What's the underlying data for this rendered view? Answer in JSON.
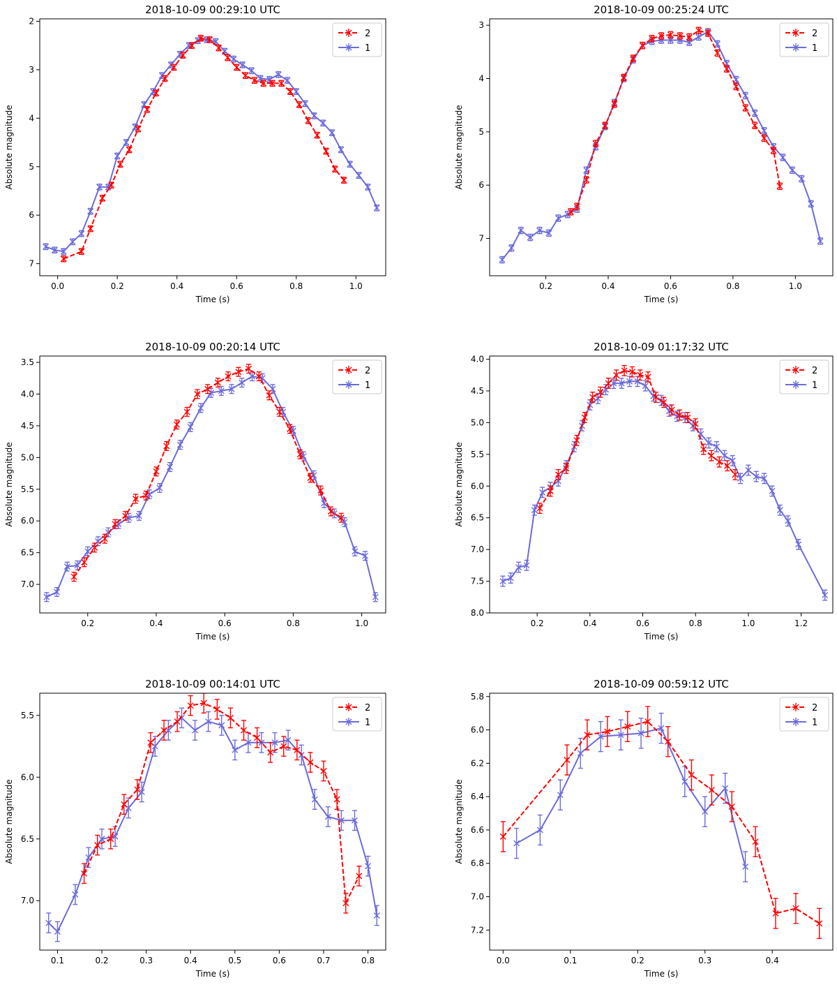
{
  "figure": {
    "ylabel_common": "Absolute magnitude",
    "xlabel_common": "Time (s)"
  },
  "colors": {
    "series_2": "#ff0000",
    "series_1": "#6b6bdb",
    "axis": "#000000"
  },
  "chart_data": [
    {
      "type": "line",
      "title": "2018-10-09 00:29:10 UTC",
      "xlabel": "Time (s)",
      "ylabel": "Absolute magnitude",
      "xlim": [
        -0.06,
        1.1
      ],
      "ylim": [
        7.25,
        1.95
      ],
      "y_inverted": true,
      "xticks": [
        0.0,
        0.2,
        0.4,
        0.6,
        0.8,
        1.0
      ],
      "xtick_labels": [
        "0.0",
        "0.2",
        "0.4",
        "0.6",
        "0.8",
        "1.0"
      ],
      "yticks": [
        2,
        3,
        4,
        5,
        6,
        7
      ],
      "ytick_labels": [
        "2",
        "3",
        "4",
        "5",
        "6",
        "7"
      ],
      "legend": [
        "2",
        "1"
      ],
      "legend_position": "top-right",
      "series": [
        {
          "name": "2",
          "style": "dashed",
          "err": 0.06,
          "x": [
            0.02,
            0.08,
            0.11,
            0.15,
            0.18,
            0.21,
            0.24,
            0.27,
            0.3,
            0.33,
            0.36,
            0.39,
            0.42,
            0.45,
            0.48,
            0.51,
            0.54,
            0.57,
            0.6,
            0.63,
            0.66,
            0.69,
            0.72,
            0.75,
            0.78,
            0.81,
            0.84,
            0.87,
            0.9,
            0.93,
            0.96
          ],
          "y": [
            6.9,
            6.75,
            6.28,
            5.65,
            5.38,
            4.95,
            4.65,
            4.22,
            3.82,
            3.48,
            3.18,
            2.95,
            2.7,
            2.5,
            2.35,
            2.38,
            2.55,
            2.75,
            2.95,
            3.12,
            3.22,
            3.28,
            3.28,
            3.28,
            3.45,
            3.72,
            4.05,
            4.35,
            4.68,
            5.05,
            5.28
          ]
        },
        {
          "name": "1",
          "style": "solid",
          "err": 0.06,
          "x": [
            -0.04,
            -0.01,
            0.02,
            0.05,
            0.08,
            0.11,
            0.14,
            0.17,
            0.2,
            0.23,
            0.26,
            0.29,
            0.32,
            0.35,
            0.38,
            0.41,
            0.44,
            0.47,
            0.5,
            0.53,
            0.56,
            0.59,
            0.62,
            0.65,
            0.68,
            0.71,
            0.74,
            0.77,
            0.8,
            0.83,
            0.86,
            0.89,
            0.92,
            0.95,
            0.98,
            1.01,
            1.04,
            1.07
          ],
          "y": [
            6.65,
            6.72,
            6.75,
            6.55,
            6.38,
            5.92,
            5.42,
            5.42,
            4.78,
            4.5,
            4.18,
            3.72,
            3.45,
            3.12,
            2.9,
            2.68,
            2.5,
            2.4,
            2.38,
            2.42,
            2.62,
            2.78,
            2.9,
            3.02,
            3.18,
            3.2,
            3.1,
            3.22,
            3.45,
            3.7,
            3.95,
            4.1,
            4.3,
            4.65,
            4.95,
            5.18,
            5.42,
            5.85
          ]
        }
      ]
    },
    {
      "type": "line",
      "title": "2018-10-09 00:25:24 UTC",
      "xlabel": "Time (s)",
      "ylabel": "Absolute magnitude",
      "xlim": [
        0.02,
        1.12
      ],
      "ylim": [
        7.7,
        2.88
      ],
      "y_inverted": true,
      "xticks": [
        0.2,
        0.4,
        0.6,
        0.8,
        1.0
      ],
      "xtick_labels": [
        "0.2",
        "0.4",
        "0.6",
        "0.8",
        "1.0"
      ],
      "yticks": [
        3,
        4,
        5,
        6,
        7
      ],
      "ytick_labels": [
        "3",
        "4",
        "5",
        "6",
        "7"
      ],
      "legend": [
        "2",
        "1"
      ],
      "legend_position": "top-right",
      "series": [
        {
          "name": "2",
          "style": "dashed",
          "err": 0.06,
          "x": [
            0.28,
            0.3,
            0.33,
            0.36,
            0.39,
            0.42,
            0.45,
            0.48,
            0.51,
            0.54,
            0.57,
            0.6,
            0.63,
            0.66,
            0.69,
            0.72,
            0.75,
            0.78,
            0.81,
            0.84,
            0.87,
            0.9,
            0.93,
            0.95
          ],
          "y": [
            6.5,
            6.4,
            5.9,
            5.22,
            4.88,
            4.48,
            3.98,
            3.62,
            3.38,
            3.25,
            3.2,
            3.18,
            3.2,
            3.22,
            3.1,
            3.15,
            3.52,
            3.82,
            4.15,
            4.55,
            4.88,
            5.12,
            5.35,
            6.02
          ]
        },
        {
          "name": "1",
          "style": "solid",
          "err": 0.06,
          "x": [
            0.06,
            0.09,
            0.12,
            0.15,
            0.18,
            0.21,
            0.24,
            0.27,
            0.3,
            0.33,
            0.36,
            0.39,
            0.42,
            0.45,
            0.48,
            0.51,
            0.54,
            0.57,
            0.6,
            0.63,
            0.66,
            0.69,
            0.72,
            0.75,
            0.78,
            0.81,
            0.84,
            0.87,
            0.9,
            0.93,
            0.96,
            0.99,
            1.02,
            1.05,
            1.08
          ],
          "y": [
            7.4,
            7.18,
            6.85,
            6.98,
            6.85,
            6.9,
            6.62,
            6.55,
            6.45,
            5.72,
            5.28,
            4.9,
            4.45,
            4.0,
            3.65,
            3.38,
            3.3,
            3.28,
            3.28,
            3.28,
            3.32,
            3.22,
            3.12,
            3.35,
            3.72,
            4.02,
            4.32,
            4.65,
            4.98,
            5.28,
            5.48,
            5.72,
            5.88,
            6.35,
            7.05
          ]
        }
      ]
    },
    {
      "type": "line",
      "title": "2018-10-09 00:20:14 UTC",
      "xlabel": "Time (s)",
      "ylabel": "Absolute magnitude",
      "xlim": [
        0.06,
        1.07
      ],
      "ylim": [
        7.45,
        3.4
      ],
      "y_inverted": true,
      "xticks": [
        0.2,
        0.4,
        0.6,
        0.8,
        1.0
      ],
      "xtick_labels": [
        "0.2",
        "0.4",
        "0.6",
        "0.8",
        "1.0"
      ],
      "yticks": [
        3.5,
        4.0,
        4.5,
        5.0,
        5.5,
        6.0,
        6.5,
        7.0
      ],
      "ytick_labels": [
        "3.5",
        "4.0",
        "4.5",
        "5.0",
        "5.5",
        "6.0",
        "6.5",
        "7.0"
      ],
      "legend": [
        "2",
        "1"
      ],
      "legend_position": "top-right",
      "series": [
        {
          "name": "2",
          "style": "dashed",
          "err": 0.07,
          "x": [
            0.16,
            0.19,
            0.22,
            0.25,
            0.28,
            0.31,
            0.34,
            0.37,
            0.4,
            0.43,
            0.46,
            0.49,
            0.52,
            0.55,
            0.58,
            0.61,
            0.64,
            0.67,
            0.7,
            0.73,
            0.76,
            0.79,
            0.82,
            0.85,
            0.88,
            0.91,
            0.94
          ],
          "y": [
            6.88,
            6.65,
            6.42,
            6.28,
            6.05,
            5.92,
            5.65,
            5.6,
            5.22,
            4.82,
            4.48,
            4.28,
            4.0,
            3.92,
            3.82,
            3.72,
            3.65,
            3.6,
            3.72,
            4.02,
            4.28,
            4.55,
            4.95,
            5.32,
            5.52,
            5.85,
            5.95
          ]
        },
        {
          "name": "1",
          "style": "solid",
          "err": 0.07,
          "x": [
            0.08,
            0.11,
            0.14,
            0.17,
            0.2,
            0.23,
            0.26,
            0.29,
            0.32,
            0.35,
            0.38,
            0.41,
            0.44,
            0.47,
            0.5,
            0.53,
            0.56,
            0.59,
            0.62,
            0.65,
            0.68,
            0.71,
            0.74,
            0.77,
            0.8,
            0.83,
            0.86,
            0.89,
            0.92,
            0.95,
            0.98,
            1.01,
            1.04
          ],
          "y": [
            7.2,
            7.12,
            6.72,
            6.7,
            6.48,
            6.32,
            6.18,
            6.05,
            5.95,
            5.92,
            5.58,
            5.48,
            5.15,
            4.8,
            4.52,
            4.22,
            3.98,
            3.95,
            3.92,
            3.82,
            3.72,
            3.75,
            3.92,
            4.28,
            4.58,
            4.98,
            5.28,
            5.72,
            5.88,
            6.02,
            6.48,
            6.55,
            7.2
          ]
        }
      ]
    },
    {
      "type": "line",
      "title": "2018-10-09 01:17:32 UTC",
      "xlabel": "Time (s)",
      "ylabel": "Absolute magnitude",
      "xlim": [
        0.02,
        1.32
      ],
      "ylim": [
        8.0,
        3.95
      ],
      "y_inverted": true,
      "xticks": [
        0.2,
        0.4,
        0.6,
        0.8,
        1.0,
        1.2
      ],
      "xtick_labels": [
        "0.2",
        "0.4",
        "0.6",
        "0.8",
        "1.0",
        "1.2"
      ],
      "yticks": [
        4.0,
        4.5,
        5.0,
        5.5,
        6.0,
        6.5,
        7.0,
        7.5,
        8.0
      ],
      "ytick_labels": [
        "4.0",
        "4.5",
        "5.0",
        "5.5",
        "6.0",
        "6.5",
        "7.0",
        "7.5",
        "8.0"
      ],
      "legend": [
        "2",
        "1"
      ],
      "legend_position": "top-right",
      "series": [
        {
          "name": "2",
          "style": "dashed",
          "err": 0.08,
          "x": [
            0.21,
            0.25,
            0.28,
            0.31,
            0.35,
            0.38,
            0.41,
            0.44,
            0.47,
            0.5,
            0.53,
            0.56,
            0.59,
            0.62,
            0.65,
            0.68,
            0.71,
            0.74,
            0.77,
            0.8,
            0.83,
            0.86,
            0.89,
            0.92,
            0.95
          ],
          "y": [
            6.35,
            6.08,
            5.82,
            5.72,
            5.28,
            4.92,
            4.6,
            4.52,
            4.38,
            4.25,
            4.18,
            4.2,
            4.25,
            4.28,
            4.6,
            4.68,
            4.8,
            4.88,
            4.92,
            5.02,
            5.42,
            5.52,
            5.62,
            5.68,
            5.82
          ]
        },
        {
          "name": "1",
          "style": "solid",
          "err": 0.08,
          "x": [
            0.07,
            0.1,
            0.13,
            0.16,
            0.19,
            0.22,
            0.25,
            0.28,
            0.31,
            0.34,
            0.37,
            0.4,
            0.43,
            0.46,
            0.49,
            0.52,
            0.55,
            0.58,
            0.61,
            0.64,
            0.67,
            0.7,
            0.73,
            0.76,
            0.79,
            0.82,
            0.85,
            0.88,
            0.91,
            0.94,
            0.97,
            1.0,
            1.03,
            1.06,
            1.09,
            1.12,
            1.15,
            1.19,
            1.29
          ],
          "y": [
            7.5,
            7.45,
            7.28,
            7.25,
            6.38,
            6.1,
            6.02,
            5.92,
            5.68,
            5.38,
            5.05,
            4.72,
            4.62,
            4.48,
            4.38,
            4.38,
            4.35,
            4.35,
            4.42,
            4.58,
            4.65,
            4.82,
            4.9,
            4.92,
            5.05,
            5.18,
            5.32,
            5.38,
            5.52,
            5.6,
            5.88,
            5.75,
            5.85,
            5.88,
            6.08,
            6.38,
            6.55,
            6.92,
            7.72
          ]
        }
      ]
    },
    {
      "type": "line",
      "title": "2018-10-09 00:14:01 UTC",
      "xlabel": "Time (s)",
      "ylabel": "Absolute magnitude",
      "xlim": [
        0.06,
        0.84
      ],
      "ylim": [
        7.4,
        5.32
      ],
      "y_inverted": true,
      "xticks": [
        0.1,
        0.2,
        0.3,
        0.4,
        0.5,
        0.6,
        0.7,
        0.8
      ],
      "xtick_labels": [
        "0.1",
        "0.2",
        "0.3",
        "0.4",
        "0.5",
        "0.6",
        "0.7",
        "0.8"
      ],
      "yticks": [
        5.5,
        6.0,
        6.5,
        7.0
      ],
      "ytick_labels": [
        "5.5",
        "6.0",
        "6.5",
        "7.0"
      ],
      "legend": [
        "2",
        "1"
      ],
      "legend_position": "top-right",
      "series": [
        {
          "name": "2",
          "style": "dashed",
          "err": 0.08,
          "x": [
            0.16,
            0.19,
            0.22,
            0.25,
            0.28,
            0.31,
            0.34,
            0.37,
            0.4,
            0.43,
            0.46,
            0.49,
            0.52,
            0.55,
            0.58,
            0.61,
            0.64,
            0.67,
            0.7,
            0.73,
            0.75,
            0.78
          ],
          "y": [
            6.78,
            6.55,
            6.5,
            6.22,
            6.1,
            5.72,
            5.62,
            5.55,
            5.42,
            5.4,
            5.45,
            5.52,
            5.62,
            5.68,
            5.8,
            5.75,
            5.78,
            5.88,
            5.95,
            6.18,
            7.02,
            6.8
          ]
        },
        {
          "name": "1",
          "style": "solid",
          "err": 0.08,
          "x": [
            0.08,
            0.1,
            0.14,
            0.17,
            0.2,
            0.23,
            0.26,
            0.29,
            0.32,
            0.35,
            0.38,
            0.41,
            0.44,
            0.47,
            0.5,
            0.53,
            0.56,
            0.59,
            0.62,
            0.65,
            0.68,
            0.71,
            0.74,
            0.77,
            0.8,
            0.82
          ],
          "y": [
            7.18,
            7.25,
            6.95,
            6.65,
            6.5,
            6.48,
            6.25,
            6.12,
            5.75,
            5.62,
            5.52,
            5.62,
            5.55,
            5.58,
            5.78,
            5.72,
            5.72,
            5.72,
            5.7,
            5.82,
            6.18,
            6.32,
            6.35,
            6.35,
            6.72,
            7.12
          ]
        }
      ]
    },
    {
      "type": "line",
      "title": "2018-10-09 00:59:12 UTC",
      "xlabel": "Time (s)",
      "ylabel": "Absolute magnitude",
      "xlim": [
        -0.02,
        0.49
      ],
      "ylim": [
        7.32,
        5.78
      ],
      "y_inverted": true,
      "xticks": [
        0.0,
        0.1,
        0.2,
        0.3,
        0.4
      ],
      "xtick_labels": [
        "0.0",
        "0.1",
        "0.2",
        "0.3",
        "0.4"
      ],
      "yticks": [
        5.8,
        6.0,
        6.2,
        6.4,
        6.6,
        6.8,
        7.0,
        7.2
      ],
      "ytick_labels": [
        "5.8",
        "6.0",
        "6.2",
        "6.4",
        "6.6",
        "6.8",
        "7.0",
        "7.2"
      ],
      "legend": [
        "2",
        "1"
      ],
      "legend_position": "top-right",
      "series": [
        {
          "name": "2",
          "style": "dashed",
          "err": 0.09,
          "x": [
            0.0,
            0.095,
            0.125,
            0.155,
            0.185,
            0.215,
            0.245,
            0.28,
            0.31,
            0.34,
            0.375,
            0.405,
            0.435,
            0.47
          ],
          "y": [
            6.64,
            6.18,
            6.03,
            6.01,
            5.98,
            5.95,
            6.07,
            6.27,
            6.36,
            6.46,
            6.67,
            7.1,
            7.07,
            7.16
          ]
        },
        {
          "name": "1",
          "style": "solid",
          "err": 0.09,
          "x": [
            0.02,
            0.055,
            0.085,
            0.115,
            0.145,
            0.175,
            0.205,
            0.235,
            0.27,
            0.3,
            0.33,
            0.36
          ],
          "y": [
            6.68,
            6.6,
            6.39,
            6.14,
            6.04,
            6.03,
            6.02,
            5.99,
            6.31,
            6.49,
            6.35,
            6.82
          ]
        }
      ]
    }
  ]
}
